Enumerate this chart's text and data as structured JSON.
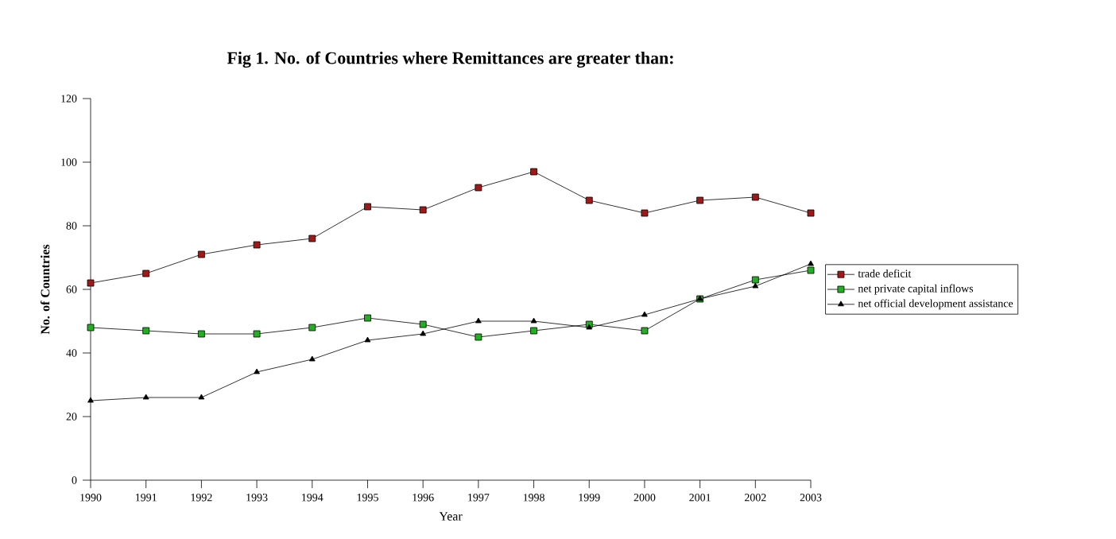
{
  "chart_data": {
    "type": "line",
    "title": "Fig 1. No. of Countries where Remittances are greater than:",
    "xlabel": "Year",
    "ylabel": "No. of Countries",
    "categories": [
      "1990",
      "1991",
      "1992",
      "1993",
      "1994",
      "1995",
      "1996",
      "1997",
      "1998",
      "1999",
      "2000",
      "2001",
      "2002",
      "2003"
    ],
    "ylim": [
      0,
      120
    ],
    "yticks": [
      0,
      20,
      40,
      60,
      80,
      100,
      120
    ],
    "legend": "right",
    "grid": false,
    "series": [
      {
        "name": "trade deficit",
        "color": "#a01818",
        "marker": "square",
        "values": [
          62,
          65,
          71,
          74,
          76,
          86,
          85,
          92,
          97,
          88,
          84,
          88,
          89,
          84
        ]
      },
      {
        "name": "net private capital inflows",
        "color": "#22b022",
        "marker": "square",
        "values": [
          48,
          47,
          46,
          46,
          48,
          51,
          49,
          45,
          47,
          49,
          47,
          57,
          63,
          66
        ]
      },
      {
        "name": "net official development assistance",
        "color": "#000000",
        "marker": "triangle",
        "values": [
          25,
          26,
          26,
          34,
          38,
          44,
          46,
          50,
          50,
          48,
          52,
          57,
          61,
          68
        ]
      }
    ]
  }
}
